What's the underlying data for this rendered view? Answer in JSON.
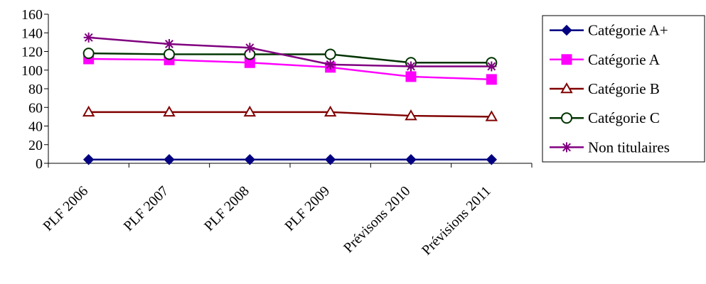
{
  "chart_data": {
    "type": "line",
    "title": "",
    "xlabel": "",
    "ylabel": "",
    "categories": [
      "PLF 2006",
      "PLF 2007",
      "PLF 2008",
      "PLF 2009",
      "Prévisons 2010",
      "Prévisions 2011"
    ],
    "ylim": [
      0,
      160
    ],
    "yticks": [
      0,
      20,
      40,
      60,
      80,
      100,
      120,
      140,
      160
    ],
    "grid": false,
    "legend_position": "right",
    "series": [
      {
        "name": "Catégorie A+",
        "values": [
          4,
          4,
          4,
          4,
          4,
          4
        ],
        "color": "#000080",
        "marker": "diamond"
      },
      {
        "name": "Catégorie A",
        "values": [
          112,
          111,
          108,
          103,
          93,
          90
        ],
        "color": "#ff00ff",
        "marker": "square"
      },
      {
        "name": "Catégorie B",
        "values": [
          55,
          55,
          55,
          55,
          51,
          50
        ],
        "color": "#800000",
        "marker": "triangle"
      },
      {
        "name": "Catégorie C",
        "values": [
          118,
          117,
          117,
          117,
          108,
          108
        ],
        "color": "#003300",
        "marker": "circle"
      },
      {
        "name": "Non titulaires",
        "values": [
          135,
          128,
          124,
          106,
          104,
          104
        ],
        "color": "#800080",
        "marker": "star"
      }
    ]
  }
}
